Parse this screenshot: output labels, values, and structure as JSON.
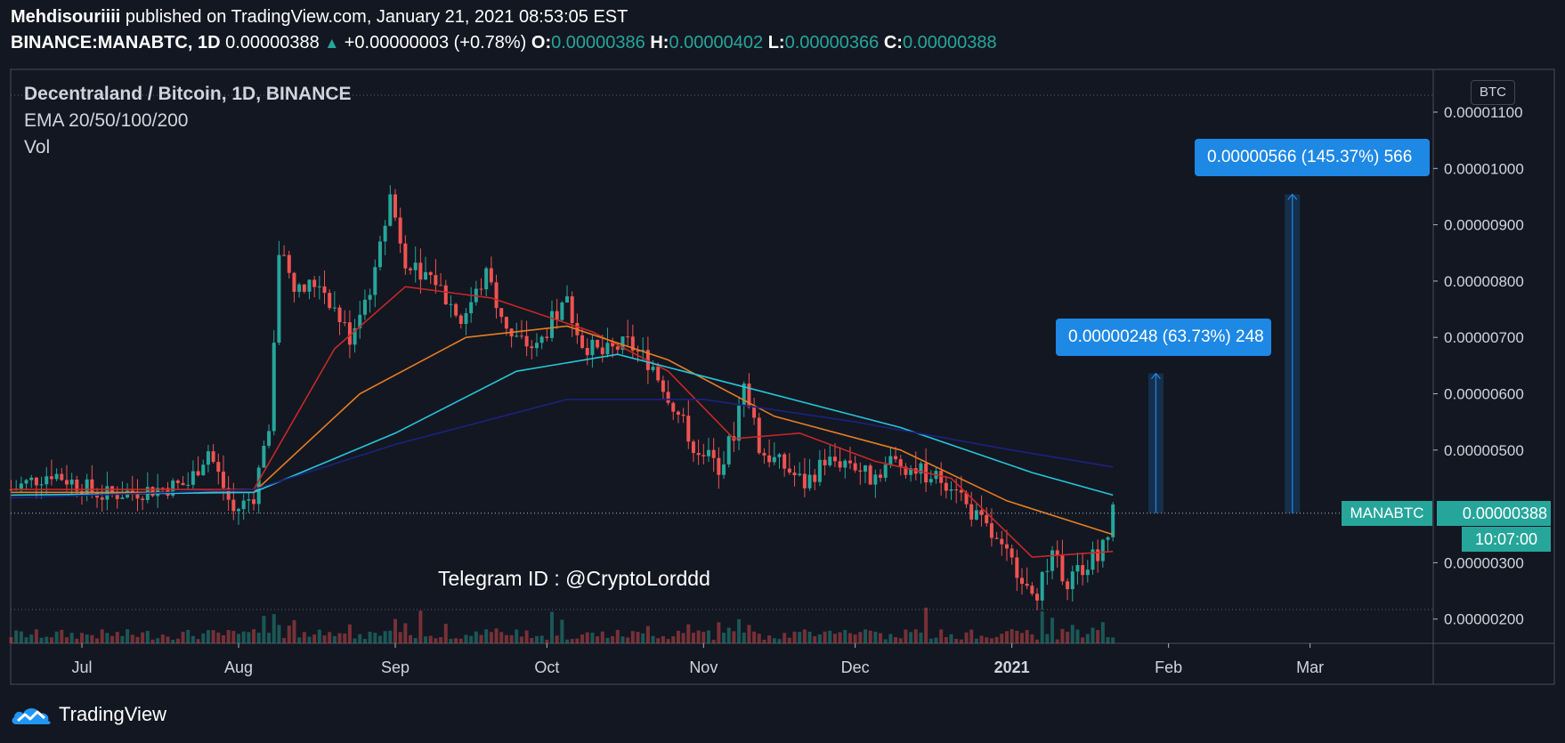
{
  "header": {
    "author": "Mehdisouriiii",
    "published": " published on TradingView.com, January 21, 2021 08:53:05 EST",
    "symbol": "BINANCE:MANABTC, 1D",
    "last": "0.00000388",
    "change": "+0.00000003 (+0.78%)",
    "o_label": "O:",
    "o": "0.00000386",
    "h_label": "H:",
    "h": "0.00000402",
    "l_label": "L:",
    "l": "0.00000366",
    "c_label": "C:",
    "c": "0.00000388"
  },
  "legend": {
    "title": "Decentraland / Bitcoin, 1D, BINANCE",
    "ema": "EMA 20/50/100/200",
    "vol": "Vol"
  },
  "annotations": {
    "telegram": "Telegram ID : @CryptoLorddd",
    "measure1": "0.00000248 (63.73%) 248",
    "measure2": "0.00000566 (145.37%) 566"
  },
  "price_scale": {
    "unit": "BTC",
    "symbol_label": "MANABTC",
    "last_price": "0.00000388",
    "countdown": "10:07:00"
  },
  "footer": {
    "brand": "TradingView"
  },
  "colors": {
    "background": "#131722",
    "up": "#26a69a",
    "down": "#ef5350",
    "ema20": "#c62828",
    "ema50": "#e67e22",
    "ema100": "#26c6da",
    "ema200": "#1a237e",
    "measure": "#1e88e5"
  },
  "chart_data": {
    "type": "candlestick",
    "x_ticks": [
      "Jul",
      "Aug",
      "Sep",
      "Oct",
      "Nov",
      "Dec",
      "2021",
      "Feb",
      "Mar"
    ],
    "y_ticks": [
      "0.00001100",
      "0.00001000",
      "0.00000900",
      "0.00000800",
      "0.00000700",
      "0.00000600",
      "0.00000500",
      "0.00000300",
      "0.00000200"
    ],
    "ylim": [
      1.8e-06,
      1.16e-05
    ],
    "last_price": 3.88e-06,
    "close_series": [
      {
        "date": "2020-06-17",
        "close": 4.3e-06
      },
      {
        "date": "2020-06-25",
        "close": 4.6e-06
      },
      {
        "date": "2020-07-05",
        "close": 4.2e-06
      },
      {
        "date": "2020-07-15",
        "close": 4.3e-06
      },
      {
        "date": "2020-07-22",
        "close": 4.4e-06
      },
      {
        "date": "2020-07-26",
        "close": 5e-06
      },
      {
        "date": "2020-07-31",
        "close": 3.9e-06
      },
      {
        "date": "2020-08-04",
        "close": 4.2e-06
      },
      {
        "date": "2020-08-07",
        "close": 5.5e-06
      },
      {
        "date": "2020-08-09",
        "close": 8.5e-06
      },
      {
        "date": "2020-08-13",
        "close": 7.8e-06
      },
      {
        "date": "2020-08-17",
        "close": 8e-06
      },
      {
        "date": "2020-08-23",
        "close": 7e-06
      },
      {
        "date": "2020-08-28",
        "close": 8.1e-06
      },
      {
        "date": "2020-08-31",
        "close": 9.5e-06
      },
      {
        "date": "2020-09-03",
        "close": 8.4e-06
      },
      {
        "date": "2020-09-09",
        "close": 8e-06
      },
      {
        "date": "2020-09-14",
        "close": 7.3e-06
      },
      {
        "date": "2020-09-19",
        "close": 8.1e-06
      },
      {
        "date": "2020-09-24",
        "close": 7e-06
      },
      {
        "date": "2020-09-29",
        "close": 6.8e-06
      },
      {
        "date": "2020-10-02",
        "close": 7.3e-06
      },
      {
        "date": "2020-10-05",
        "close": 7.6e-06
      },
      {
        "date": "2020-10-08",
        "close": 6.9e-06
      },
      {
        "date": "2020-10-12",
        "close": 6.7e-06
      },
      {
        "date": "2020-10-17",
        "close": 6.9e-06
      },
      {
        "date": "2020-10-22",
        "close": 6.5e-06
      },
      {
        "date": "2020-10-26",
        "close": 5.8e-06
      },
      {
        "date": "2020-10-30",
        "close": 5.1e-06
      },
      {
        "date": "2020-11-04",
        "close": 4.7e-06
      },
      {
        "date": "2020-11-07",
        "close": 5.3e-06
      },
      {
        "date": "2020-11-09",
        "close": 6.3e-06
      },
      {
        "date": "2020-11-12",
        "close": 5e-06
      },
      {
        "date": "2020-11-17",
        "close": 4.7e-06
      },
      {
        "date": "2020-11-21",
        "close": 4.4e-06
      },
      {
        "date": "2020-11-25",
        "close": 4.8e-06
      },
      {
        "date": "2020-11-30",
        "close": 4.8e-06
      },
      {
        "date": "2020-12-04",
        "close": 4.5e-06
      },
      {
        "date": "2020-12-08",
        "close": 4.8e-06
      },
      {
        "date": "2020-12-12",
        "close": 4.7e-06
      },
      {
        "date": "2020-12-17",
        "close": 4.5e-06
      },
      {
        "date": "2020-12-21",
        "close": 4.4e-06
      },
      {
        "date": "2020-12-23",
        "close": 4e-06
      },
      {
        "date": "2020-12-27",
        "close": 3.6e-06
      },
      {
        "date": "2020-12-30",
        "close": 3.2e-06
      },
      {
        "date": "2021-01-03",
        "close": 2.8e-06
      },
      {
        "date": "2021-01-06",
        "close": 2.5e-06
      },
      {
        "date": "2021-01-09",
        "close": 3.1e-06
      },
      {
        "date": "2021-01-12",
        "close": 2.7e-06
      },
      {
        "date": "2021-01-16",
        "close": 3e-06
      },
      {
        "date": "2021-01-19",
        "close": 3.3e-06
      },
      {
        "date": "2021-01-21",
        "close": 3.88e-06
      }
    ],
    "ema_series": [
      {
        "name": "EMA 20",
        "color": "#c62828",
        "points": [
          {
            "date": "2020-06-17",
            "value": 4.3e-06
          },
          {
            "date": "2020-08-04",
            "value": 4.3e-06
          },
          {
            "date": "2020-08-20",
            "value": 6.8e-06
          },
          {
            "date": "2020-09-03",
            "value": 7.9e-06
          },
          {
            "date": "2020-09-20",
            "value": 7.7e-06
          },
          {
            "date": "2020-10-10",
            "value": 7.1e-06
          },
          {
            "date": "2020-10-25",
            "value": 6.4e-06
          },
          {
            "date": "2020-11-07",
            "value": 5.2e-06
          },
          {
            "date": "2020-11-20",
            "value": 5.3e-06
          },
          {
            "date": "2020-12-05",
            "value": 4.8e-06
          },
          {
            "date": "2020-12-20",
            "value": 4.5e-06
          },
          {
            "date": "2021-01-05",
            "value": 3.1e-06
          },
          {
            "date": "2021-01-21",
            "value": 3.2e-06
          }
        ]
      },
      {
        "name": "EMA 50",
        "color": "#e67e22",
        "points": [
          {
            "date": "2020-06-17",
            "value": 4.25e-06
          },
          {
            "date": "2020-08-04",
            "value": 4.25e-06
          },
          {
            "date": "2020-08-25",
            "value": 6e-06
          },
          {
            "date": "2020-09-15",
            "value": 7e-06
          },
          {
            "date": "2020-10-05",
            "value": 7.2e-06
          },
          {
            "date": "2020-10-25",
            "value": 6.6e-06
          },
          {
            "date": "2020-11-15",
            "value": 5.6e-06
          },
          {
            "date": "2020-12-10",
            "value": 5e-06
          },
          {
            "date": "2020-12-31",
            "value": 4.1e-06
          },
          {
            "date": "2021-01-21",
            "value": 3.5e-06
          }
        ]
      },
      {
        "name": "EMA 100",
        "color": "#26c6da",
        "points": [
          {
            "date": "2020-06-17",
            "value": 4.2e-06
          },
          {
            "date": "2020-08-04",
            "value": 4.25e-06
          },
          {
            "date": "2020-09-01",
            "value": 5.3e-06
          },
          {
            "date": "2020-09-25",
            "value": 6.4e-06
          },
          {
            "date": "2020-10-15",
            "value": 6.7e-06
          },
          {
            "date": "2020-11-10",
            "value": 6.1e-06
          },
          {
            "date": "2020-12-10",
            "value": 5.4e-06
          },
          {
            "date": "2021-01-05",
            "value": 4.6e-06
          },
          {
            "date": "2021-01-21",
            "value": 4.2e-06
          }
        ]
      },
      {
        "name": "EMA 200",
        "color": "#1a237e",
        "points": [
          {
            "date": "2020-06-17",
            "value": 4.15e-06
          },
          {
            "date": "2020-08-04",
            "value": 4.3e-06
          },
          {
            "date": "2020-09-01",
            "value": 5.1e-06
          },
          {
            "date": "2020-10-05",
            "value": 5.9e-06
          },
          {
            "date": "2020-11-01",
            "value": 5.9e-06
          },
          {
            "date": "2020-12-01",
            "value": 5.5e-06
          },
          {
            "date": "2021-01-01",
            "value": 5e-06
          },
          {
            "date": "2021-01-21",
            "value": 4.7e-06
          }
        ]
      }
    ],
    "measures": [
      {
        "label": "0.00000248 (63.73%) 248",
        "start_date": "2021-01-28",
        "end_date": "2021-01-31",
        "from": 3.88e-06,
        "to": 6.36e-06
      },
      {
        "label": "0.00000566 (145.37%) 566",
        "start_date": "2021-02-24",
        "end_date": "2021-02-27",
        "from": 3.88e-06,
        "to": 9.54e-06
      }
    ],
    "grid": false,
    "legend_position": "top-left"
  }
}
